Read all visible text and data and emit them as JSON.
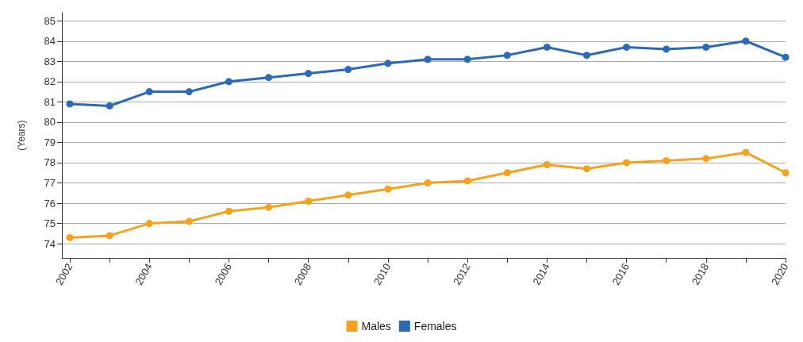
{
  "chart_data": {
    "type": "line",
    "ylabel": "(Years)",
    "x": [
      2002,
      2003,
      2004,
      2005,
      2006,
      2007,
      2008,
      2009,
      2010,
      2011,
      2012,
      2013,
      2014,
      2015,
      2016,
      2017,
      2018,
      2019,
      2020
    ],
    "series": [
      {
        "name": "Males",
        "color": "#f5a21f",
        "values": [
          74.3,
          74.4,
          75.0,
          75.1,
          75.6,
          75.8,
          76.1,
          76.4,
          76.7,
          77.0,
          77.1,
          77.5,
          77.9,
          77.7,
          78.0,
          78.1,
          78.2,
          78.5,
          77.5
        ]
      },
      {
        "name": "Females",
        "color": "#2a6ab8",
        "values": [
          80.9,
          80.8,
          81.5,
          81.5,
          82.0,
          82.2,
          82.4,
          82.6,
          82.9,
          83.1,
          83.1,
          83.3,
          83.7,
          83.3,
          83.7,
          83.6,
          83.7,
          84.0,
          83.2
        ]
      }
    ],
    "xlim": [
      2001.8,
      2020
    ],
    "xticks": [
      2002,
      {
        "value": 2003,
        "label": null
      },
      2004,
      {
        "value": 2005,
        "label": null
      },
      2006,
      {
        "value": 2007,
        "label": null
      },
      2008,
      {
        "value": 2009,
        "label": null
      },
      2010,
      {
        "value": 2011,
        "label": null
      },
      2012,
      {
        "value": 2013,
        "label": null
      },
      2014,
      {
        "value": 2015,
        "label": null
      },
      2016,
      {
        "value": 2017,
        "label": null
      },
      2018,
      {
        "value": 2019,
        "label": null
      },
      2020
    ],
    "ylim": [
      73.3,
      85.4
    ],
    "yticks": [
      74,
      75,
      76,
      77,
      78,
      79,
      80,
      81,
      82,
      83,
      84,
      85
    ],
    "grid": "y",
    "legend": "bottom",
    "marker": "circle",
    "line_style": "solid"
  }
}
